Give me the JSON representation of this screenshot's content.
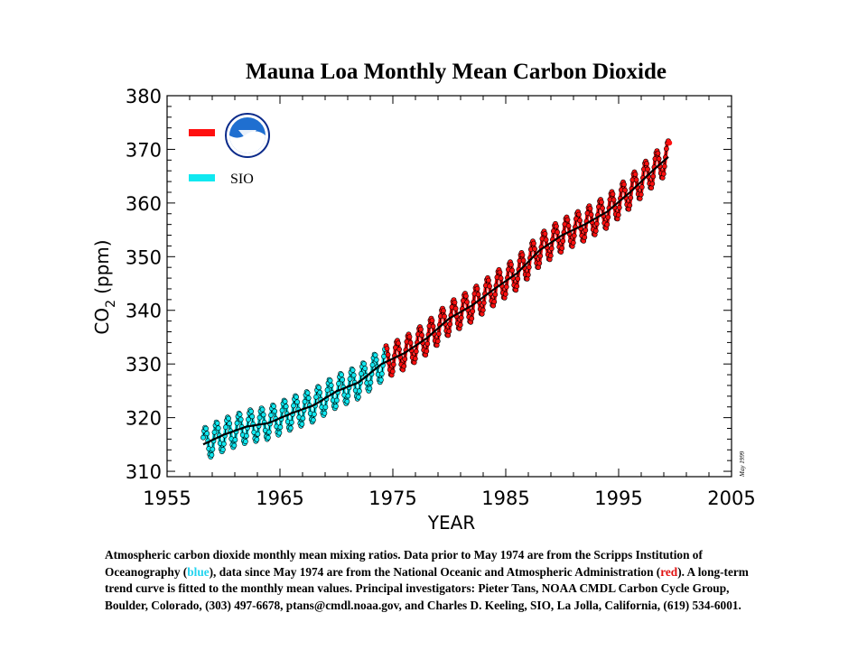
{
  "chart_data": {
    "type": "line",
    "title": "Mauna Loa Monthly Mean Carbon Dioxide",
    "xlabel": "YEAR",
    "ylabel": "CO",
    "ylabel_subscript": "2",
    "ylabel_unit": "(ppm)",
    "xlim": [
      1955,
      2005
    ],
    "ylim": [
      309,
      380
    ],
    "x_ticks": [
      1955,
      1965,
      1975,
      1985,
      1995,
      2005
    ],
    "y_ticks": [
      310,
      320,
      330,
      340,
      350,
      360,
      370,
      380
    ],
    "grid": false,
    "legend_position": "top-left",
    "legend": [
      {
        "label": "",
        "icon": "noaa-logo-icon",
        "color": "#ff1010"
      },
      {
        "label": "SIO",
        "color": "#10e8f0"
      }
    ],
    "series": [
      {
        "name": "SIO",
        "color": "#10e8f0",
        "x": [
          1958.2,
          1960,
          1962,
          1964,
          1966,
          1968,
          1970,
          1972,
          1974.3
        ],
        "y": [
          315.0,
          316.8,
          318.3,
          319.0,
          320.8,
          322.3,
          324.9,
          326.6,
          330.3
        ],
        "seasonal_amplitude": 3.0
      },
      {
        "name": "NOAA",
        "color": "#ff1010",
        "x": [
          1974.4,
          1976,
          1978,
          1980,
          1982,
          1984,
          1986,
          1988,
          1990,
          1992,
          1994,
          1996,
          1998,
          1999.4
        ],
        "y": [
          330.4,
          332.0,
          334.8,
          338.5,
          340.9,
          344.0,
          346.9,
          351.2,
          354.0,
          356.0,
          358.4,
          362.0,
          366.0,
          368.6
        ],
        "seasonal_amplitude": 3.0
      },
      {
        "name": "trend",
        "color": "#000000",
        "x": [
          1958.2,
          1960,
          1962,
          1964,
          1966,
          1968,
          1970,
          1972,
          1974,
          1976,
          1978,
          1980,
          1982,
          1984,
          1986,
          1988,
          1990,
          1992,
          1994,
          1996,
          1998,
          1999.4
        ],
        "y": [
          315.0,
          316.8,
          318.3,
          319.0,
          320.8,
          322.3,
          324.9,
          326.6,
          330.0,
          332.0,
          334.8,
          338.5,
          340.9,
          344.0,
          346.9,
          351.2,
          354.0,
          356.0,
          358.4,
          362.0,
          366.0,
          368.6
        ]
      }
    ],
    "last_point": {
      "x": 1999.5,
      "y": 371.2
    },
    "stamp": "May 1999"
  },
  "caption": {
    "part1": "Atmospheric carbon dioxide monthly mean mixing ratios.  Data prior to May 1974 are from the Scripps Institution of Oceanography (",
    "blue_word": "blue",
    "part2": "), data since May 1974 are from the National Oceanic and Atmospheric Administration (",
    "red_word": "red",
    "part3": ").  A long-term trend curve is fitted to the monthly mean values. Principal investigators:  Pieter Tans, NOAA CMDL Carbon Cycle Group, Boulder, Colorado, (303) 497-6678, ptans@cmdl.noaa.gov, and Charles D. Keeling, SIO, La Jolla, California, (619) 534-6001."
  }
}
